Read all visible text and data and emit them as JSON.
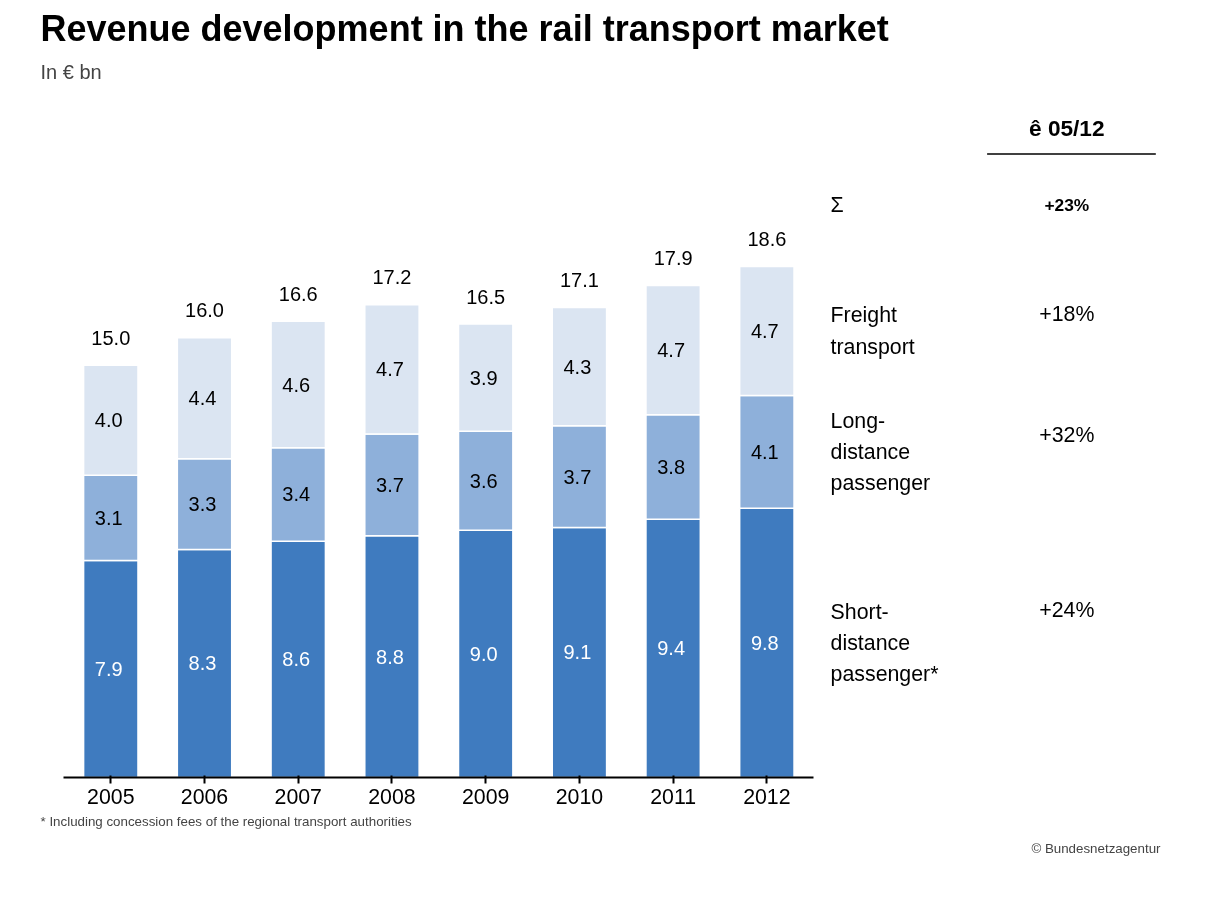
{
  "chart_data": {
    "type": "bar",
    "title": "Revenue development in the rail transport market",
    "subtitle": "In € bn",
    "categories": [
      "2005",
      "2006",
      "2007",
      "2008",
      "2009",
      "2010",
      "2011",
      "2012"
    ],
    "stacked": true,
    "grid": false,
    "tick_labels": "x",
    "series": [
      {
        "name": "Short-distance passenger*",
        "color": "#3f7bbf",
        "values": [
          7.9,
          8.3,
          8.6,
          8.8,
          9.0,
          9.1,
          9.4,
          9.8
        ],
        "value_labels": [
          "7.9",
          "8.3",
          "8.6",
          "8.8",
          "9.0",
          "9.1",
          "9.4",
          "9.8"
        ]
      },
      {
        "name": "Long-distance passenger",
        "color": "#8eb0da",
        "values": [
          3.1,
          3.3,
          3.4,
          3.7,
          3.6,
          3.7,
          3.8,
          4.1
        ],
        "value_labels": [
          "3.1",
          "3.3",
          "3.4",
          "3.7",
          "3.6",
          "3.7",
          "3.8",
          "4.1"
        ]
      },
      {
        "name": "Freight transport",
        "color": "#dbe5f2",
        "values": [
          4.0,
          4.4,
          4.6,
          4.7,
          3.9,
          4.3,
          4.7,
          4.7
        ],
        "value_labels": [
          "4.0",
          "4.4",
          "4.6",
          "4.7",
          "3.9",
          "4.3",
          "4.7",
          "4.7"
        ]
      }
    ],
    "totals": [
      "15.0",
      "16.0",
      "16.6",
      "17.2",
      "16.5",
      "17.1",
      "17.9",
      "18.6"
    ],
    "annotations": [
      "ê 05/12",
      "Σ",
      "+23%",
      "+24%",
      "+32%",
      "+18%",
      "* Including  concession fees of the regional transport authorities",
      "© Bundesnetzagentur"
    ]
  }
}
